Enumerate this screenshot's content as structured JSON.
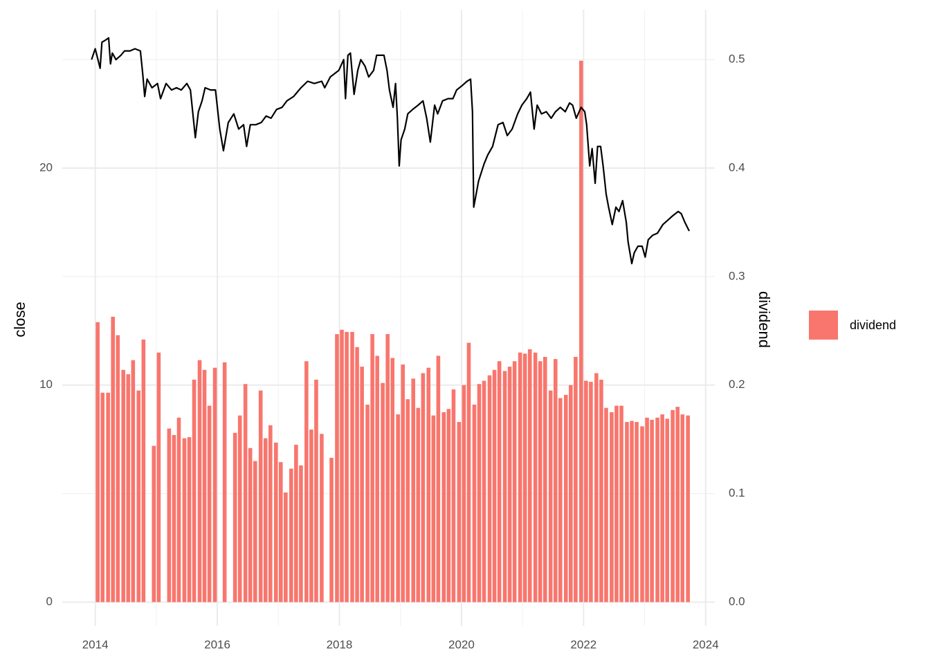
{
  "chart_data": {
    "type": "combo",
    "y_label": "close",
    "y2_label": "dividend",
    "xlim": [
      2013.46,
      2024.15
    ],
    "xticks": [
      2014,
      2016,
      2018,
      2020,
      2022,
      2024
    ],
    "xminorticks": [
      2015,
      2017,
      2019,
      2021,
      2023
    ],
    "ylim": [
      -1.1,
      27.3
    ],
    "yticks": [
      0,
      10,
      20
    ],
    "y2lim": [
      -0.022,
      0.546
    ],
    "y2ticks": [
      0.0,
      0.1,
      0.2,
      0.3,
      0.4,
      0.5
    ],
    "grid": true,
    "legend": "right",
    "series": [
      {
        "name": "dividend",
        "type": "bar",
        "axis": "y2",
        "color": "#f8766d",
        "x": [
          2014.04,
          2014.12,
          2014.21,
          2014.29,
          2014.37,
          2014.46,
          2014.54,
          2014.62,
          2014.71,
          2014.79,
          2014.87,
          2014.96,
          2015.04,
          2015.12,
          2015.21,
          2015.29,
          2015.37,
          2015.46,
          2015.54,
          2015.62,
          2015.71,
          2015.79,
          2015.87,
          2015.96,
          2016.04,
          2016.12,
          2016.21,
          2016.29,
          2016.37,
          2016.46,
          2016.54,
          2016.62,
          2016.71,
          2016.79,
          2016.87,
          2016.96,
          2017.04,
          2017.12,
          2017.21,
          2017.29,
          2017.37,
          2017.46,
          2017.54,
          2017.62,
          2017.71,
          2017.79,
          2017.87,
          2017.96,
          2018.04,
          2018.12,
          2018.21,
          2018.29,
          2018.37,
          2018.46,
          2018.54,
          2018.62,
          2018.71,
          2018.79,
          2018.87,
          2018.96,
          2019.04,
          2019.12,
          2019.21,
          2019.29,
          2019.37,
          2019.46,
          2019.54,
          2019.62,
          2019.71,
          2019.79,
          2019.87,
          2019.96,
          2020.04,
          2020.12,
          2020.21,
          2020.29,
          2020.37,
          2020.46,
          2020.54,
          2020.62,
          2020.71,
          2020.79,
          2020.87,
          2020.96,
          2021.04,
          2021.12,
          2021.21,
          2021.29,
          2021.37,
          2021.46,
          2021.54,
          2021.62,
          2021.71,
          2021.79,
          2021.87,
          2021.96,
          2022.04,
          2022.12,
          2022.21,
          2022.29,
          2022.37,
          2022.46,
          2022.54,
          2022.62,
          2022.71,
          2022.79,
          2022.87,
          2022.96,
          2023.04,
          2023.12,
          2023.21,
          2023.29,
          2023.37,
          2023.46,
          2023.54,
          2023.62,
          2023.71
        ],
        "values": [
          0.258,
          0.193,
          0.193,
          0.263,
          0.246,
          0.214,
          0.21,
          0.223,
          0.195,
          0.242,
          null,
          0.144,
          0.23,
          null,
          0.16,
          0.154,
          0.17,
          0.151,
          0.152,
          0.205,
          0.223,
          0.214,
          0.181,
          0.216,
          null,
          0.221,
          null,
          0.156,
          0.172,
          0.201,
          0.142,
          0.13,
          0.195,
          0.151,
          0.163,
          0.147,
          0.129,
          0.101,
          0.123,
          0.145,
          0.126,
          0.222,
          0.159,
          0.205,
          0.155,
          null,
          0.133,
          0.247,
          0.251,
          0.249,
          0.249,
          0.235,
          0.217,
          0.182,
          0.247,
          0.227,
          0.202,
          0.247,
          0.225,
          0.173,
          0.219,
          0.187,
          0.206,
          0.179,
          0.211,
          0.216,
          0.172,
          0.227,
          0.175,
          0.178,
          0.196,
          0.166,
          0.2,
          0.239,
          0.182,
          0.201,
          0.204,
          0.209,
          0.214,
          0.222,
          0.213,
          0.217,
          0.222,
          0.23,
          0.229,
          0.233,
          0.23,
          0.222,
          0.226,
          0.195,
          0.224,
          0.188,
          0.191,
          0.2,
          0.226,
          0.499,
          0.204,
          0.203,
          0.211,
          0.205,
          0.179,
          0.175,
          0.181,
          0.181,
          0.166,
          0.167,
          0.166,
          0.162,
          0.17,
          0.168,
          0.17,
          0.173,
          0.169,
          0.177,
          0.18,
          0.173,
          0.172
        ]
      },
      {
        "type": "line",
        "color": "#000000",
        "x": [
          2013.94,
          2014.0,
          2014.08,
          2014.11,
          2014.17,
          2014.22,
          2014.25,
          2014.28,
          2014.34,
          2014.42,
          2014.48,
          2014.57,
          2014.65,
          2014.74,
          2014.78,
          2014.81,
          2014.85,
          2014.93,
          2015.02,
          2015.07,
          2015.16,
          2015.25,
          2015.33,
          2015.41,
          2015.5,
          2015.56,
          2015.64,
          2015.69,
          2015.75,
          2015.8,
          2015.89,
          2015.97,
          2016.04,
          2016.1,
          2016.18,
          2016.27,
          2016.35,
          2016.43,
          2016.48,
          2016.54,
          2016.63,
          2016.72,
          2016.8,
          2016.88,
          2016.97,
          2017.06,
          2017.14,
          2017.25,
          2017.37,
          2017.48,
          2017.59,
          2017.71,
          2017.76,
          2017.85,
          2017.99,
          2018.07,
          2018.1,
          2018.14,
          2018.18,
          2018.24,
          2018.3,
          2018.35,
          2018.42,
          2018.48,
          2018.56,
          2018.61,
          2018.67,
          2018.73,
          2018.78,
          2018.82,
          2018.88,
          2018.92,
          2018.95,
          2018.98,
          2019.01,
          2019.07,
          2019.12,
          2019.2,
          2019.29,
          2019.37,
          2019.43,
          2019.49,
          2019.56,
          2019.61,
          2019.69,
          2019.78,
          2019.86,
          2019.92,
          2020.01,
          2020.09,
          2020.15,
          2020.18,
          2020.2,
          2020.24,
          2020.28,
          2020.37,
          2020.43,
          2020.51,
          2020.6,
          2020.68,
          2020.75,
          2020.83,
          2020.92,
          2020.99,
          2021.07,
          2021.13,
          2021.19,
          2021.24,
          2021.31,
          2021.39,
          2021.47,
          2021.54,
          2021.62,
          2021.7,
          2021.77,
          2021.82,
          2021.88,
          2021.96,
          2022.02,
          2022.05,
          2022.1,
          2022.14,
          2022.19,
          2022.23,
          2022.28,
          2022.32,
          2022.37,
          2022.41,
          2022.47,
          2022.53,
          2022.58,
          2022.64,
          2022.7,
          2022.73,
          2022.79,
          2022.83,
          2022.89,
          2022.96,
          2023.01,
          2023.06,
          2023.13,
          2023.21,
          2023.3,
          2023.38,
          2023.46,
          2023.55,
          2023.6,
          2023.66,
          2023.73
        ],
        "values": [
          25.0,
          25.5,
          24.6,
          25.8,
          25.9,
          26.0,
          24.8,
          25.3,
          25.0,
          25.2,
          25.4,
          25.4,
          25.5,
          25.4,
          24.3,
          23.3,
          24.1,
          23.7,
          23.9,
          23.2,
          23.9,
          23.6,
          23.7,
          23.6,
          23.9,
          23.6,
          21.4,
          22.6,
          23.1,
          23.7,
          23.6,
          23.6,
          21.8,
          20.8,
          22.1,
          22.5,
          21.8,
          22.0,
          21.0,
          22.0,
          22.0,
          22.1,
          22.4,
          22.3,
          22.7,
          22.8,
          23.1,
          23.3,
          23.7,
          24.0,
          23.9,
          24.0,
          23.7,
          24.2,
          24.5,
          25.0,
          23.2,
          25.2,
          25.3,
          23.4,
          24.5,
          25.0,
          24.7,
          24.2,
          24.5,
          25.2,
          25.2,
          25.2,
          24.5,
          23.6,
          22.8,
          23.9,
          22.3,
          20.1,
          21.3,
          21.8,
          22.5,
          22.7,
          22.9,
          23.1,
          22.3,
          21.2,
          22.9,
          22.5,
          23.1,
          23.2,
          23.2,
          23.6,
          23.8,
          24.0,
          24.1,
          22.6,
          18.2,
          18.8,
          19.4,
          20.2,
          20.6,
          21.0,
          22.0,
          22.1,
          21.5,
          21.8,
          22.5,
          22.9,
          23.2,
          23.5,
          21.8,
          22.9,
          22.5,
          22.6,
          22.3,
          22.6,
          22.8,
          22.6,
          23.0,
          22.9,
          22.3,
          22.8,
          22.6,
          22.0,
          20.1,
          20.9,
          19.3,
          21.0,
          21.0,
          20.1,
          18.8,
          18.2,
          17.4,
          18.2,
          18.0,
          18.5,
          17.5,
          16.6,
          15.6,
          16.1,
          16.4,
          16.4,
          15.9,
          16.7,
          16.9,
          17.0,
          17.4,
          17.6,
          17.8,
          18.0,
          17.9,
          17.5,
          17.1
        ]
      }
    ]
  }
}
